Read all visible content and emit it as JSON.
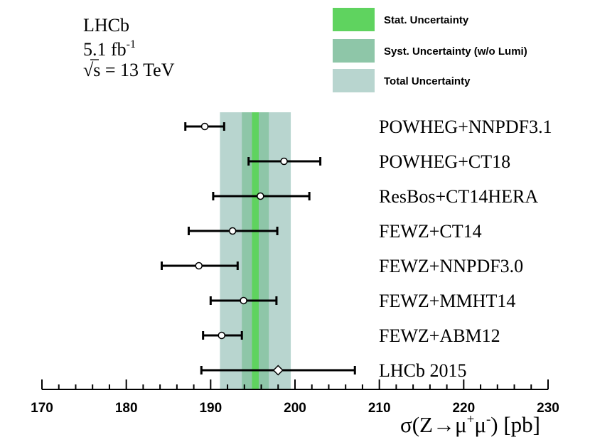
{
  "chart_data": {
    "type": "forest",
    "experiment": {
      "name": "LHCb",
      "lumi_value": "5.1 fb",
      "lumi_exponent": "-1",
      "energy_sqrt": "√s",
      "energy_text": " = 13 TeV"
    },
    "measurement": {
      "central": 195.3,
      "stat_band": [
        194.9,
        195.7
      ],
      "syst_band": [
        193.7,
        196.9
      ],
      "total_band": [
        191.1,
        199.5
      ]
    },
    "legend": [
      {
        "label": "Stat. Uncertainty",
        "color": "#5fd35f"
      },
      {
        "label": "Syst. Uncertainty (w/o Lumi)",
        "color": "#8ec6a8"
      },
      {
        "label": "Total Uncertainty",
        "color": "#b8d5cf"
      }
    ],
    "predictions": [
      {
        "label": "POWHEG+NNPDF3.1",
        "value": 189.3,
        "low": 187.0,
        "high": 191.6,
        "marker": "circle"
      },
      {
        "label": "POWHEG+CT18",
        "value": 198.7,
        "low": 194.5,
        "high": 203.0,
        "marker": "circle"
      },
      {
        "label": "ResBos+CT14HERA",
        "value": 195.9,
        "low": 190.3,
        "high": 201.7,
        "marker": "circle"
      },
      {
        "label": "FEWZ+CT14",
        "value": 192.6,
        "low": 187.4,
        "high": 197.9,
        "marker": "circle"
      },
      {
        "label": "FEWZ+NNPDF3.0",
        "value": 188.6,
        "low": 184.2,
        "high": 193.2,
        "marker": "circle"
      },
      {
        "label": "FEWZ+MMHT14",
        "value": 193.9,
        "low": 190.0,
        "high": 197.8,
        "marker": "circle"
      },
      {
        "label": "FEWZ+ABM12",
        "value": 191.3,
        "low": 189.1,
        "high": 193.7,
        "marker": "circle"
      },
      {
        "label": "LHCb 2015",
        "value": 198.0,
        "low": 188.9,
        "high": 207.1,
        "marker": "diamond"
      }
    ],
    "xaxis": {
      "min": 170,
      "max": 230,
      "ticks": [
        170,
        180,
        190,
        200,
        210,
        220,
        230
      ],
      "minor_step": 2,
      "label_sigma": "σ(Z",
      "label_arrow": "→",
      "label_mu": "μ",
      "label_plus": "+",
      "label_minus": "-",
      "label_unit": ") [pb]"
    }
  },
  "colors": {
    "stat": "#5fd35f",
    "syst": "#8ec6a8",
    "total": "#b8d5cf",
    "ink": "#000000"
  }
}
